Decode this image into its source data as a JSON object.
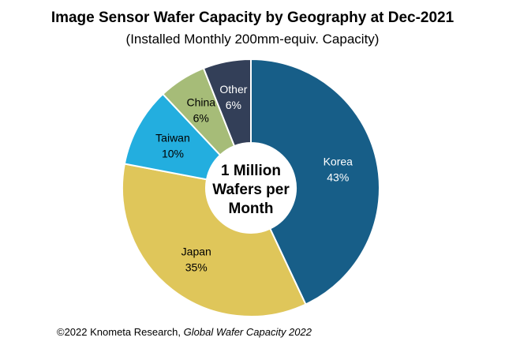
{
  "chart_data": {
    "type": "pie",
    "donut": true,
    "title": "Image Sensor Wafer Capacity by Geography at Dec-2021",
    "subtitle": "(Installed Monthly 200mm-equiv. Capacity)",
    "center_label": [
      "1 Million",
      "Wafers per",
      "Month"
    ],
    "slices": [
      {
        "label": "Korea",
        "value": 43,
        "display": "43%",
        "color": "#175e88",
        "text_color": "#ffffff"
      },
      {
        "label": "Japan",
        "value": 35,
        "display": "35%",
        "color": "#dfc65a",
        "text_color": "#000000"
      },
      {
        "label": "Taiwan",
        "value": 10,
        "display": "10%",
        "color": "#23aedf",
        "text_color": "#000000"
      },
      {
        "label": "China",
        "value": 6,
        "display": "6%",
        "color": "#a6bc78",
        "text_color": "#000000"
      },
      {
        "label": "Other",
        "value": 6,
        "display": "6%",
        "color": "#333f58",
        "text_color": "#ffffff"
      }
    ]
  },
  "footer": {
    "prefix": "©2022 Knometa Research, ",
    "source": "Global Wafer Capacity 2022"
  }
}
